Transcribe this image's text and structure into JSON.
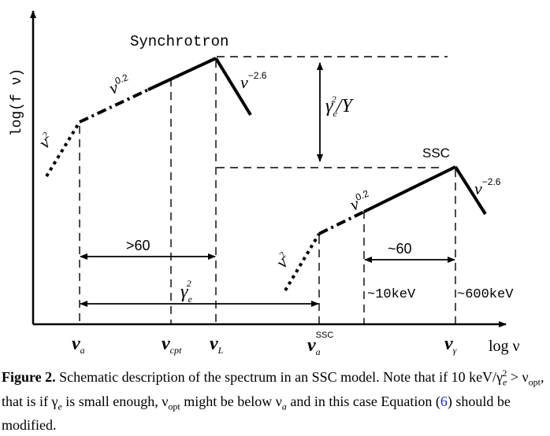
{
  "axes": {
    "ylabel": "log(f ν)",
    "xlabel": "log ν"
  },
  "curves": {
    "synchrotron_label": "Synchrotron",
    "ssc_label": "SSC",
    "sync_low_slope": "ν",
    "sync_low_exp": "2",
    "sync_mid_slope": "ν",
    "sync_mid_exp": "0.2",
    "sync_high_slope": "ν",
    "sync_high_exp": "−2.6",
    "ssc_low_slope": "ν",
    "ssc_low_exp": "2",
    "ssc_mid_slope": "ν",
    "ssc_mid_exp": "0.2",
    "ssc_high_slope": "ν",
    "ssc_high_exp": "−2.6"
  },
  "annotations": {
    "gap_gamma": "γ",
    "gap_sub": "e",
    "gap_sup": "2",
    "gap_rest": "/Y",
    "sync_width": ">60",
    "ssc_width": "~60",
    "gamma_e2": "γ",
    "gamma_e2_sub": "e",
    "gamma_e2_sup": "2",
    "kev10": "~10keV",
    "kev600": "~600keV"
  },
  "ticks": {
    "nu_a": "ν",
    "nu_a_sub": "a",
    "nu_cpt": "ν",
    "nu_cpt_sub": "cpt",
    "nu_L": "ν",
    "nu_L_sub": "L",
    "nu_a_ssc": "ν",
    "nu_a_ssc_sub": "a",
    "nu_a_ssc_sup": "SSC",
    "nu_gamma": "ν",
    "nu_gamma_sub": "γ"
  },
  "caption": {
    "label": "Figure 2.",
    "text1": " Schematic description of the spectrum in an SSC model. Note that if 10 keV/γ",
    "text1_sub": "e",
    "text1_sup": "2",
    "text2": " > ν",
    "text2_sub": "opt",
    "text3": ", that is if γ",
    "text3_sub": "e",
    "text4": " is small enough, ν",
    "text4_sub": "opt",
    "text5": " might be below ν",
    "text5_sub": "a",
    "text6": " and in this case Equation (",
    "ref": "6",
    "text7": ") should be modified."
  }
}
